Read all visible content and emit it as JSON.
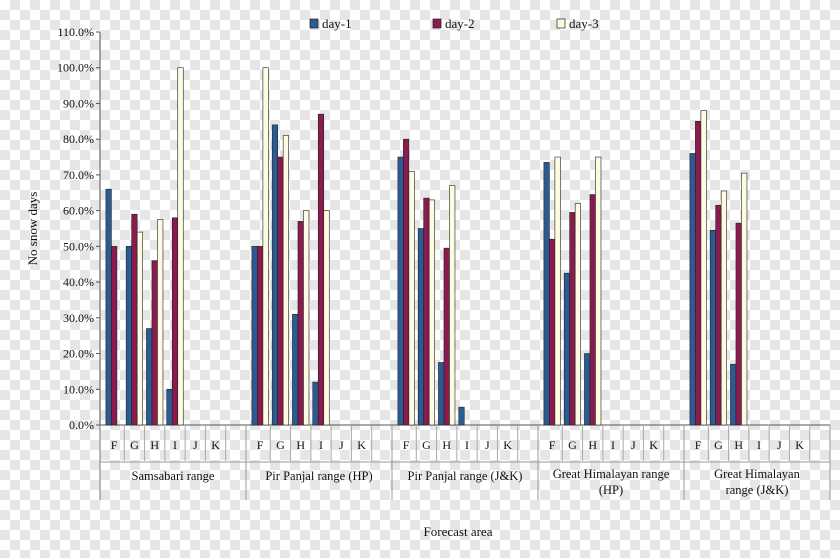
{
  "chart_data": {
    "type": "bar",
    "title": "",
    "xlabel": "Forecast area",
    "ylabel": "No snow days",
    "ylim": [
      0,
      110
    ],
    "y_ticks": [
      "0.0%",
      "10.0%",
      "20.0%",
      "30.0%",
      "40.0%",
      "50.0%",
      "60.0%",
      "70.0%",
      "80.0%",
      "90.0%",
      "100.0%",
      "110.0%"
    ],
    "grid": false,
    "legend_position": "top",
    "categories": [
      "F",
      "G",
      "H",
      "I",
      "J",
      "K"
    ],
    "groups": [
      {
        "name": "Samsabari range",
        "lines": [
          "Samsabari range"
        ],
        "series": {
          "day-1": [
            66,
            50,
            27,
            10,
            null,
            null
          ],
          "day-2": [
            50,
            59,
            46,
            58,
            null,
            null
          ],
          "day-3": [
            null,
            54,
            57.5,
            100,
            null,
            null
          ]
        }
      },
      {
        "name": "Pir Panjal range (HP)",
        "lines": [
          "Pir Panjal range (HP)"
        ],
        "series": {
          "day-1": [
            50,
            84,
            31,
            12,
            null,
            null
          ],
          "day-2": [
            50,
            75,
            57,
            87,
            null,
            null
          ],
          "day-3": [
            100,
            81,
            60,
            60,
            null,
            null
          ]
        }
      },
      {
        "name": "Pir Panjal range (J&K)",
        "lines": [
          "Pir Panjal range (J&K)"
        ],
        "series": {
          "day-1": [
            75,
            55,
            17.5,
            5,
            null,
            null
          ],
          "day-2": [
            80,
            63.5,
            49.5,
            null,
            null,
            null
          ],
          "day-3": [
            71,
            63,
            67,
            null,
            null,
            null
          ]
        }
      },
      {
        "name": "Great Himalayan range (HP)",
        "lines": [
          "Great Himalayan range",
          "(HP)"
        ],
        "series": {
          "day-1": [
            73.5,
            42.5,
            20,
            null,
            null,
            null
          ],
          "day-2": [
            52,
            59.5,
            64.5,
            null,
            null,
            null
          ],
          "day-3": [
            75,
            62,
            75,
            null,
            null,
            null
          ]
        }
      },
      {
        "name": "Great Himalayan range (J&K)",
        "lines": [
          "Great Himalayan",
          "range (J&K)"
        ],
        "series": {
          "day-1": [
            76,
            54.5,
            17,
            null,
            null,
            null
          ],
          "day-2": [
            85,
            61.5,
            56.5,
            null,
            null,
            null
          ],
          "day-3": [
            88,
            65.5,
            70.5,
            null,
            null,
            null
          ]
        }
      }
    ],
    "series": [
      {
        "name": "day-1",
        "color": "#2c5a92"
      },
      {
        "name": "day-2",
        "color": "#8b1a4f"
      },
      {
        "name": "day-3",
        "color": "#fdfbe2"
      }
    ]
  }
}
